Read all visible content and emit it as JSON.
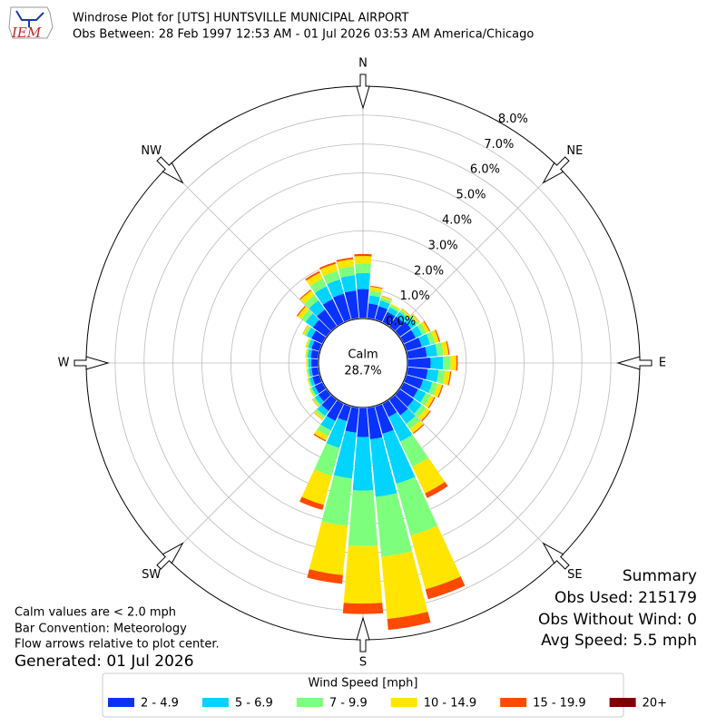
{
  "header": {
    "logo_text": "IEM",
    "title": "Windrose Plot for [UTS] HUNTSVILLE MUNICIPAL AIRPORT",
    "subtitle": "Obs Between: 28 Feb 1997 12:53 AM - 01 Jul 2026 03:53 AM America/Chicago"
  },
  "chart_data": {
    "type": "windrose",
    "directions": [
      0,
      10,
      20,
      30,
      40,
      50,
      60,
      70,
      80,
      90,
      100,
      110,
      120,
      130,
      140,
      150,
      160,
      170,
      180,
      190,
      200,
      210,
      220,
      230,
      240,
      250,
      260,
      270,
      280,
      290,
      300,
      310,
      320,
      330,
      340,
      350
    ],
    "compass_labels": [
      "N",
      "NE",
      "E",
      "SE",
      "S",
      "SW",
      "W",
      "NW"
    ],
    "rlim": [
      0,
      8
    ],
    "rticks": [
      {
        "value": 0,
        "label": "0.0%"
      },
      {
        "value": 1,
        "label": "1.0%"
      },
      {
        "value": 2,
        "label": "2.0%"
      },
      {
        "value": 3,
        "label": "3.0%"
      },
      {
        "value": 4,
        "label": "4.0%"
      },
      {
        "value": 5,
        "label": "5.0%"
      },
      {
        "value": 6,
        "label": "6.0%"
      },
      {
        "value": 7,
        "label": "7.0%"
      },
      {
        "value": 8,
        "label": "8.0%"
      }
    ],
    "calm": {
      "label": "Calm",
      "value": 28.7,
      "value_label": "28.7%"
    },
    "legend_title": "Wind Speed [mph]",
    "legend_loc": "lower center",
    "series": [
      {
        "name": "2 - 4.9",
        "color": "#0a32ff",
        "values": [
          0.99,
          0.5,
          0.47,
          0.39,
          0.41,
          0.47,
          0.45,
          0.54,
          0.65,
          0.77,
          0.68,
          0.59,
          0.54,
          0.59,
          0.65,
          0.5,
          0.97,
          1.08,
          0.99,
          0.85,
          0.52,
          0.65,
          0.47,
          0.33,
          0.28,
          0.25,
          0.22,
          0.22,
          0.25,
          0.28,
          0.41,
          0.56,
          0.7,
          0.88,
          0.92,
          0.95
        ]
      },
      {
        "name": "5 - 6.9",
        "color": "#00d4ff",
        "values": [
          0.55,
          0.28,
          0.21,
          0.18,
          0.19,
          0.21,
          0.25,
          0.3,
          0.36,
          0.43,
          0.38,
          0.33,
          0.3,
          0.33,
          0.36,
          0.94,
          1.79,
          2.0,
          1.85,
          1.59,
          0.96,
          0.36,
          0.21,
          0.15,
          0.12,
          0.11,
          0.1,
          0.1,
          0.11,
          0.12,
          0.19,
          0.31,
          0.39,
          0.49,
          0.51,
          0.53
        ]
      },
      {
        "name": "7 - 9.9",
        "color": "#7dff7d",
        "values": [
          0.33,
          0.17,
          0.1,
          0.08,
          0.09,
          0.1,
          0.15,
          0.18,
          0.22,
          0.26,
          0.22,
          0.19,
          0.18,
          0.19,
          0.22,
          0.97,
          1.86,
          2.08,
          1.92,
          1.65,
          1.0,
          0.22,
          0.1,
          0.07,
          0.06,
          0.05,
          0.05,
          0.05,
          0.05,
          0.06,
          0.09,
          0.19,
          0.23,
          0.29,
          0.31,
          0.31
        ]
      },
      {
        "name": "10 - 14.9",
        "color": "#ffe500",
        "values": [
          0.26,
          0.13,
          0.06,
          0.05,
          0.05,
          0.06,
          0.12,
          0.14,
          0.17,
          0.2,
          0.18,
          0.16,
          0.14,
          0.16,
          0.17,
          1.01,
          1.93,
          2.16,
          1.99,
          1.71,
          1.04,
          0.17,
          0.06,
          0.04,
          0.04,
          0.03,
          0.03,
          0.03,
          0.03,
          0.04,
          0.05,
          0.15,
          0.19,
          0.23,
          0.25,
          0.25
        ]
      },
      {
        "name": "15 - 19.9",
        "color": "#ff4a00",
        "values": [
          0.07,
          0.03,
          0.01,
          0,
          0.01,
          0.01,
          0.03,
          0.04,
          0.04,
          0.05,
          0.04,
          0.04,
          0.04,
          0.04,
          0.04,
          0.18,
          0.35,
          0.38,
          0.36,
          0.3,
          0.18,
          0.04,
          0.01,
          0.01,
          0,
          0,
          0,
          0,
          0,
          0,
          0.01,
          0.04,
          0.04,
          0.06,
          0.06,
          0.06
        ]
      },
      {
        "name": "20+",
        "color": "#800000",
        "values": [
          0,
          0,
          0,
          0,
          0,
          0,
          0,
          0,
          0,
          0,
          0,
          0,
          0,
          0,
          0,
          0,
          0,
          0,
          0,
          0,
          0,
          0,
          0,
          0,
          0,
          0,
          0,
          0,
          0,
          0,
          0,
          0,
          0,
          0,
          0,
          0
        ]
      }
    ]
  },
  "notes": [
    "Calm values are < 2.0 mph",
    "Bar Convention: Meteorology",
    "Flow arrows relative to plot center."
  ],
  "generated": "Generated: 01 Jul 2026",
  "summary": {
    "title": "Summary",
    "lines": [
      "Obs Used: 215179",
      "Obs Without Wind: 0",
      "Avg Speed: 5.5 mph"
    ]
  }
}
